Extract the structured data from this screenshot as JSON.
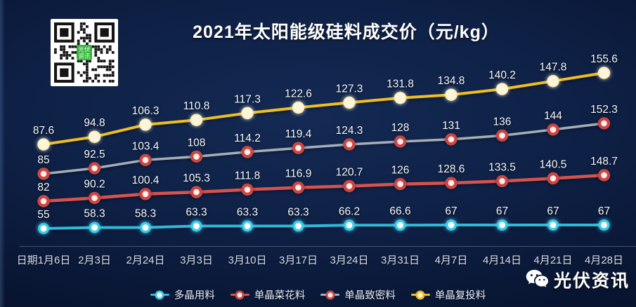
{
  "chart_data": {
    "type": "line",
    "title": "2021年太阳能级硅料成交价（元/kg）",
    "ylabel": "",
    "xlabel": "",
    "grid": false,
    "data_labels": true,
    "legend_position": "bottom",
    "categories": [
      "日期1月6日",
      "2月3日",
      "2月24日",
      "3月3日",
      "3月10日",
      "3月17日",
      "3月24日",
      "3月31日",
      "4月7日",
      "4月14日",
      "4月21日",
      "4月28日"
    ],
    "series": [
      {
        "name": "多晶用料",
        "values": [
          55,
          58.3,
          58.3,
          63.3,
          63.3,
          63.3,
          66.2,
          66.6,
          67,
          67,
          67,
          67
        ],
        "line_color": "#2fb9da",
        "marker": {
          "style": "ring",
          "ring": "#3ecbe8",
          "fill": "#ffffff",
          "glow": "cyan"
        }
      },
      {
        "name": "单晶菜花料",
        "values": [
          82,
          90.2,
          100.4,
          105.3,
          111.8,
          116.9,
          120.7,
          126,
          128.6,
          133.5,
          140.5,
          148.7
        ],
        "line_color": "#d9534e",
        "marker": {
          "style": "ring",
          "ring": "#cb4743",
          "fill": "#ffeeee",
          "glow": "red"
        }
      },
      {
        "name": "单晶致密料",
        "values": [
          85,
          92.5,
          103.4,
          108,
          114.2,
          119.4,
          124.3,
          128,
          131,
          136,
          144,
          152.3
        ],
        "line_color": "#a6aeb8",
        "marker": {
          "style": "ring",
          "ring": "#cb4743",
          "fill": "#ffeeee",
          "glow": "red"
        }
      },
      {
        "name": "单晶复投料",
        "values": [
          87.6,
          94.8,
          106.3,
          110.8,
          117.3,
          122.6,
          127.3,
          131.8,
          134.8,
          140.2,
          147.8,
          155.6
        ],
        "line_color": "#eebe23",
        "marker": {
          "style": "solid",
          "ring": "#f6ecbe",
          "fill": "#fdf5d8",
          "glow": "warm"
        }
      }
    ]
  },
  "watermark": {
    "wechat_account": "光伏资讯",
    "qr_center_line1": "光伏",
    "qr_center_line2": "资讯"
  },
  "colors": {
    "background_center": "#142a54",
    "background_edge": "#060e24",
    "data_label": "#f5f7fa",
    "axis_label": "#d9dfea",
    "qr_logo_green": "#33b43a"
  }
}
